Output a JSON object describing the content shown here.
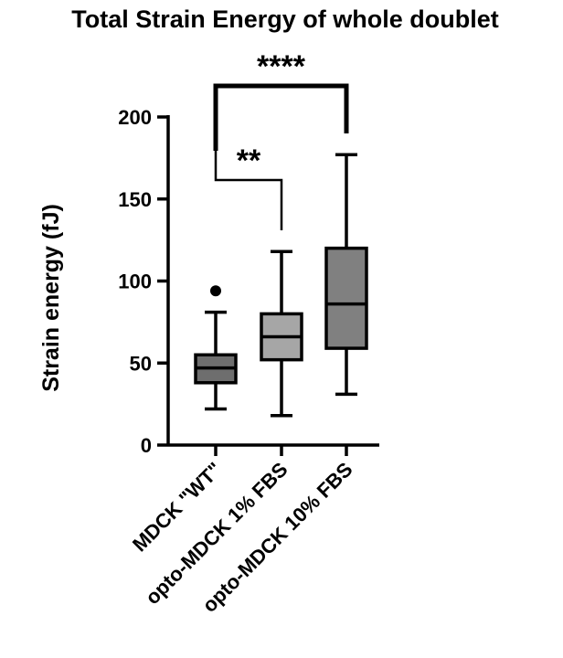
{
  "chart_data": {
    "type": "box",
    "title": "Total Strain Energy of whole doublet",
    "xlabel": "",
    "ylabel": "Strain energy (fJ)",
    "ylim": [
      0,
      200
    ],
    "yticks": [
      0,
      50,
      100,
      150,
      200
    ],
    "ytick_labels": [
      "0",
      "50",
      "100",
      "150",
      "200"
    ],
    "categories": [
      "MDCK \"WT\"",
      "opto-MDCK 1% FBS",
      "opto-MDCK 10% FBS"
    ],
    "boxes": [
      {
        "category": "MDCK \"WT\"",
        "min": 22,
        "q1": 38,
        "median": 47,
        "q3": 55,
        "max": 81,
        "outliers": [
          94
        ],
        "color": "#6e6e6e"
      },
      {
        "category": "opto-MDCK 1% FBS",
        "min": 18,
        "q1": 52,
        "median": 66,
        "q3": 80,
        "max": 118,
        "outliers": [],
        "color": "#a6a6a6"
      },
      {
        "category": "opto-MDCK 10% FBS",
        "min": 31,
        "q1": 59,
        "median": 86,
        "q3": 120,
        "max": 177,
        "outliers": [],
        "color": "#808080"
      }
    ],
    "significance": [
      {
        "from": 0,
        "to": 1,
        "label": "**",
        "heavy": false
      },
      {
        "from": 0,
        "to": 2,
        "label": "****",
        "heavy": true
      }
    ],
    "grid": false,
    "legend": "none"
  }
}
